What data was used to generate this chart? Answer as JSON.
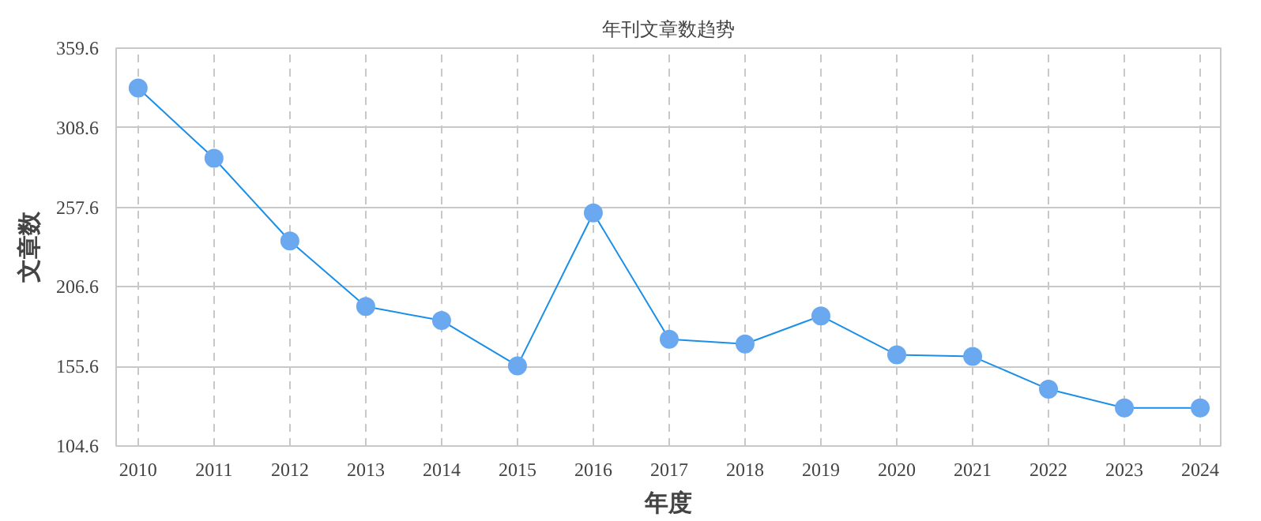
{
  "chart_data": {
    "type": "line",
    "title": "年刊文章数趋势",
    "xlabel": "年度",
    "ylabel": "文章数",
    "categories": [
      "2010",
      "2011",
      "2012",
      "2013",
      "2014",
      "2015",
      "2016",
      "2017",
      "2018",
      "2019",
      "2020",
      "2021",
      "2022",
      "2023",
      "2024"
    ],
    "series": [
      {
        "color": "#1a8fe8",
        "values": [
          334,
          289,
          236,
          194,
          185,
          156,
          254,
          173,
          170,
          188,
          163,
          162,
          141,
          129,
          129
        ]
      }
    ],
    "ylim": [
      104.6,
      359.6
    ],
    "yticks": [
      104.6,
      155.6,
      206.6,
      257.6,
      308.6,
      359.6
    ],
    "grid": true,
    "marker": "circle",
    "line_style": "solid"
  }
}
